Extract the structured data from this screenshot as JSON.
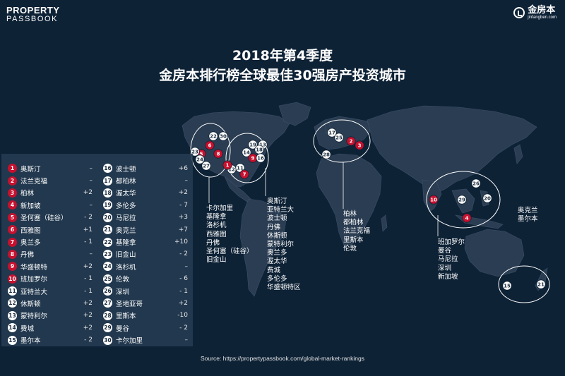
{
  "logos": {
    "left_line1": "PROPERTY",
    "left_line2": "PASSBOOK",
    "right_name": "金房本",
    "right_domain": "jinfangben.com"
  },
  "title": {
    "line1": "2018年第4季度",
    "line2": "金房本排行榜全球最佳30强房产投资城市"
  },
  "ranking": [
    {
      "rank": "1",
      "city": "奥斯汀",
      "change": "–",
      "color": "red"
    },
    {
      "rank": "2",
      "city": "法兰克福",
      "change": "–",
      "color": "red"
    },
    {
      "rank": "3",
      "city": "柏林",
      "change": "+2",
      "color": "red"
    },
    {
      "rank": "4",
      "city": "新加坡",
      "change": "–",
      "color": "red"
    },
    {
      "rank": "5",
      "city": "圣何塞（硅谷）",
      "change": "- 2",
      "color": "red"
    },
    {
      "rank": "6",
      "city": "西雅图",
      "change": "+1",
      "color": "red"
    },
    {
      "rank": "7",
      "city": "奥兰多",
      "change": "- 1",
      "color": "red"
    },
    {
      "rank": "8",
      "city": "丹佛",
      "change": "–",
      "color": "red"
    },
    {
      "rank": "9",
      "city": "华盛顿特",
      "change": "+2",
      "color": "red"
    },
    {
      "rank": "10",
      "city": "班加罗尔",
      "change": "- 1",
      "color": "red"
    },
    {
      "rank": "11",
      "city": "亚特兰大",
      "change": "- 1",
      "color": "white"
    },
    {
      "rank": "12",
      "city": "休斯顿",
      "change": "+2",
      "color": "white"
    },
    {
      "rank": "13",
      "city": "蒙特利尔",
      "change": "+2",
      "color": "white"
    },
    {
      "rank": "14",
      "city": "费城",
      "change": "+2",
      "color": "white"
    },
    {
      "rank": "15",
      "city": "墨尔本",
      "change": "- 2",
      "color": "white"
    },
    {
      "rank": "16",
      "city": "波士顿",
      "change": "+6",
      "color": "white"
    },
    {
      "rank": "17",
      "city": "都柏林",
      "change": "–",
      "color": "white"
    },
    {
      "rank": "18",
      "city": "渥太华",
      "change": "+2",
      "color": "white"
    },
    {
      "rank": "19",
      "city": "多伦多",
      "change": "- 7",
      "color": "white"
    },
    {
      "rank": "20",
      "city": "马尼拉",
      "change": "+3",
      "color": "white"
    },
    {
      "rank": "21",
      "city": "奥克兰",
      "change": "+7",
      "color": "white"
    },
    {
      "rank": "22",
      "city": "基隆拿",
      "change": "+10",
      "color": "white"
    },
    {
      "rank": "23",
      "city": "旧金山",
      "change": "- 2",
      "color": "white"
    },
    {
      "rank": "24",
      "city": "洛杉机",
      "change": "–",
      "color": "white"
    },
    {
      "rank": "25",
      "city": "伦敦",
      "change": "- 6",
      "color": "white"
    },
    {
      "rank": "26",
      "city": "深圳",
      "change": "- 1",
      "color": "white"
    },
    {
      "rank": "27",
      "city": "圣地亚哥",
      "change": "+2",
      "color": "white"
    },
    {
      "rank": "28",
      "city": "里斯本",
      "change": "-10",
      "color": "white"
    },
    {
      "rank": "29",
      "city": "曼谷",
      "change": "- 2",
      "color": "white"
    },
    {
      "rank": "30",
      "city": "卡尔加里",
      "change": "–",
      "color": "white"
    }
  ],
  "map_markers": [
    {
      "label": "22",
      "color": "white"
    },
    {
      "label": "30",
      "color": "white"
    },
    {
      "label": "6",
      "color": "red"
    },
    {
      "label": "5",
      "color": "red"
    },
    {
      "label": "8",
      "color": "red"
    },
    {
      "label": "23",
      "color": "white"
    },
    {
      "label": "24",
      "color": "white"
    },
    {
      "label": "27",
      "color": "white"
    },
    {
      "label": "19",
      "color": "white"
    },
    {
      "label": "13",
      "color": "white"
    },
    {
      "label": "18",
      "color": "white"
    },
    {
      "label": "14",
      "color": "white"
    },
    {
      "label": "9",
      "color": "red"
    },
    {
      "label": "16",
      "color": "white"
    },
    {
      "label": "12",
      "color": "white"
    },
    {
      "label": "11",
      "color": "white"
    },
    {
      "label": "1",
      "color": "red"
    },
    {
      "label": "7",
      "color": "red"
    },
    {
      "label": "17",
      "color": "white"
    },
    {
      "label": "25",
      "color": "white"
    },
    {
      "label": "2",
      "color": "red"
    },
    {
      "label": "3",
      "color": "red"
    },
    {
      "label": "28",
      "color": "white"
    },
    {
      "label": "26",
      "color": "white"
    },
    {
      "label": "10",
      "color": "red"
    },
    {
      "label": "29",
      "color": "white"
    },
    {
      "label": "20",
      "color": "white"
    },
    {
      "label": "4",
      "color": "red"
    },
    {
      "label": "15",
      "color": "white"
    },
    {
      "label": "21",
      "color": "white"
    }
  ],
  "region_lists": {
    "west_north_america": [
      "卡尔加里",
      "基隆拿",
      "洛杉机",
      "西雅图",
      "丹佛",
      "圣何塞（硅谷）",
      "旧金山"
    ],
    "east_north_america": [
      "奥斯汀",
      "亚特兰大",
      "波士顿",
      "丹佛",
      "休斯顿",
      "蒙特利尔",
      "奥兰多",
      "渥太华",
      "费城",
      "多伦多",
      "华盛顿特区"
    ],
    "europe": [
      "柏林",
      "都柏林",
      "法兰克福",
      "里斯本",
      "伦敦"
    ],
    "asia": [
      "班加罗尔",
      "曼谷",
      "马尼拉",
      "深圳",
      "新加坡"
    ],
    "oceania": [
      "奥克兰",
      "墨尔本"
    ]
  },
  "source": "Source: https://propertypassbook.com/global-market-rankings",
  "colors": {
    "background": "#0e2236",
    "land": "#2b3d52",
    "red_marker": "#c8102e",
    "white_marker": "#ffffff",
    "table_bg": "#263c52"
  }
}
